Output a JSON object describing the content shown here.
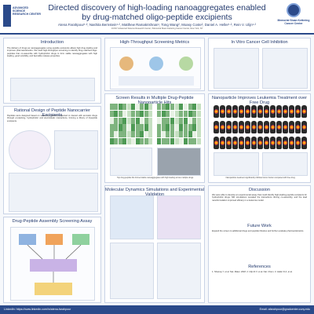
{
  "header": {
    "title_line1": "Directed discovery of high-loading nanoaggregates enabled",
    "title_line2": "by drug-matched oligo-peptide excipients",
    "authors": "Atena Farahpour¹·², Nashita Bernstein¹·², Matthew Ramakrishnan¹, Tong Wang², Moasy Coste², Daniel A. Heller¹·², Rein V. Ulijn¹·²",
    "affiliations": "¹CUNY Advanced Science Research Center; ²Memorial Sloan Kettering Cancer Center, New York, NY",
    "logo_left_text": "ADVANCED SCIENCE RESEARCH CENTER",
    "logo_right_text": "Memorial Sloan Kettering Cancer Center"
  },
  "sections": {
    "introduction": {
      "title": "Introduction",
      "text": "The delivery of drugs as nanoaggregates using peptide excipients allows high drug loading and improves pharmacokinetics. We used high-throughput screening to identify drug-matched oligo-peptides that co-assemble with hydrophobic drugs to form stable nanoaggregates with high loading, good solubility, and favorable release properties."
    },
    "rational_design": {
      "title": "Rational Design of Peptide Nanocarrier Excipients",
      "text": "Peptides were designed based on sequence features expected to interact with aromatic drugs through pi-stacking, hydrophobic and electrostatic interactions, forming a library of tripeptide excipients."
    },
    "assembly": {
      "title": "Drug-Peptide Assembly Screening Assay"
    },
    "screening_metrics": {
      "title": "High-Throughput Screening Metrics"
    },
    "screen_results": {
      "title": "Screen Results in Multiple Drug-Peptide Nanoparticle Hits",
      "caption": "Top drug-peptide hits formed stable nanoaggregates with high loading across multiple drugs."
    },
    "md_sim": {
      "title": "Molecular Dynamics Simulations and Experimental Validation"
    },
    "invitro": {
      "title": "In Vitro Cancer Cell Inhibition"
    },
    "leukemia": {
      "title": "Nanoparticle Improves Leukemia Treatment over Free Drug",
      "caption": "Nanoparticle treatment significantly inhibited tumor burden compared with free drug."
    },
    "discussion": {
      "title": "Discussion",
      "text": "We were able to develop an experimental assay that could identify high-loading peptide excipients for hydrophobic drugs. MD simulations revealed the interactions driving co-assembly, and the lead nanoformulation improved efficacy in a leukemia model."
    },
    "future": {
      "title": "Future Work",
      "text": "Expand the screen to additional drugs and peptide libraries and further evaluate pharmacokinetics."
    },
    "references": {
      "title": "References",
      "text": "1. Shamay Y. et al. Nat. Mater. 2018. 2. Ulijn R.V. et al. Nat. Chem. 3. Heller D.A. et al."
    }
  },
  "footer": {
    "left": "LinkedIn: https://www.linkedin.com/in/atena-farahpour",
    "right": "Email: afarahpour@gradcenter.cuny.edu"
  }
}
